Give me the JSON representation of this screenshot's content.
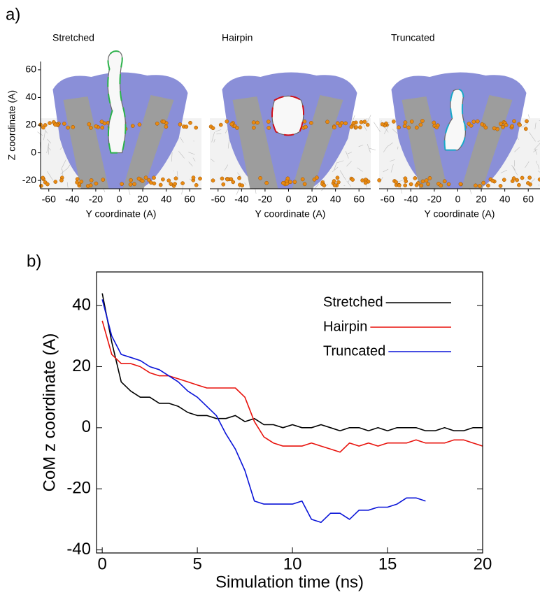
{
  "panel_labels": [
    "a)",
    "b)"
  ],
  "chart_data": [
    {
      "type": "image",
      "title": "Stretched",
      "xlabel": "Y coordinate (A)",
      "ylabel": "Z coordinate (A)",
      "xlim": [
        -67,
        70
      ],
      "xticks": [
        -60,
        -40,
        -20,
        0,
        20,
        40,
        60
      ],
      "ylim": [
        -26,
        66
      ],
      "yticks": [
        -20,
        0,
        20,
        40,
        60
      ]
    },
    {
      "type": "image",
      "title": "Hairpin",
      "xlabel": "Y coordinate (A)",
      "xlim": [
        -67,
        70
      ],
      "xticks": [
        -60,
        -40,
        -20,
        0,
        20,
        40,
        60
      ],
      "ylim": [
        -26,
        66
      ]
    },
    {
      "type": "image",
      "title": "Truncated",
      "xlabel": "Y coordinate (A)",
      "xlim": [
        -67,
        70
      ],
      "xticks": [
        -60,
        -40,
        -20,
        0,
        20,
        40,
        60
      ],
      "ylim": [
        -26,
        66
      ]
    },
    {
      "type": "line",
      "xlabel": "Simulation time (ns)",
      "ylabel": "CoM z coordinate (A)",
      "xlim": [
        -0.3,
        20
      ],
      "xticks": [
        0,
        5,
        10,
        15,
        20
      ],
      "ylim": [
        -41,
        51
      ],
      "yticks": [
        -40,
        -20,
        0,
        20,
        40
      ],
      "legend": "upper right",
      "x": [
        0,
        0.5,
        1,
        1.5,
        2,
        2.5,
        3,
        3.5,
        4,
        4.5,
        5,
        5.5,
        6,
        6.5,
        7,
        7.5,
        8,
        8.5,
        9,
        9.5,
        10,
        10.5,
        11,
        11.5,
        12,
        12.5,
        13,
        13.5,
        14,
        14.5,
        15,
        15.5,
        16,
        16.5,
        17,
        17.5,
        18,
        18.5,
        19,
        19.5,
        20
      ],
      "series": [
        {
          "name": "Stretched",
          "color": "#000000",
          "values": [
            44,
            28,
            15,
            12,
            10,
            10,
            8,
            8,
            7,
            5,
            4,
            4,
            3,
            3,
            4,
            2,
            3,
            1,
            1,
            0,
            1,
            0,
            0,
            1,
            0,
            -1,
            0,
            0,
            -1,
            0,
            -1,
            0,
            0,
            0,
            -1,
            -1,
            0,
            -1,
            -1,
            0,
            0
          ]
        },
        {
          "name": "Hairpin",
          "color": "#e8120c",
          "values": [
            35,
            24,
            21,
            21,
            20,
            18,
            17,
            17,
            16,
            15,
            14,
            13,
            13,
            13,
            13,
            10,
            2,
            -3,
            -5,
            -6,
            -6,
            -6,
            -5,
            -6,
            -7,
            -8,
            -5,
            -6,
            -5,
            -6,
            -5,
            -5,
            -5,
            -4,
            -5,
            -5,
            -5,
            -4,
            -4,
            -5,
            -6
          ]
        },
        {
          "name": "Truncated",
          "color": "#0a14d8",
          "values": [
            42,
            30,
            24,
            23,
            22,
            20,
            19,
            17,
            15,
            12,
            10,
            7,
            4,
            -2,
            -7,
            -14,
            -24,
            -25,
            -25,
            -25,
            -25,
            -24,
            -30,
            -31,
            -28,
            -28,
            -30,
            -27,
            -27,
            -26,
            -26,
            -25,
            -23,
            -23,
            -24,
            null,
            null,
            null,
            null,
            null,
            null
          ]
        }
      ]
    }
  ]
}
